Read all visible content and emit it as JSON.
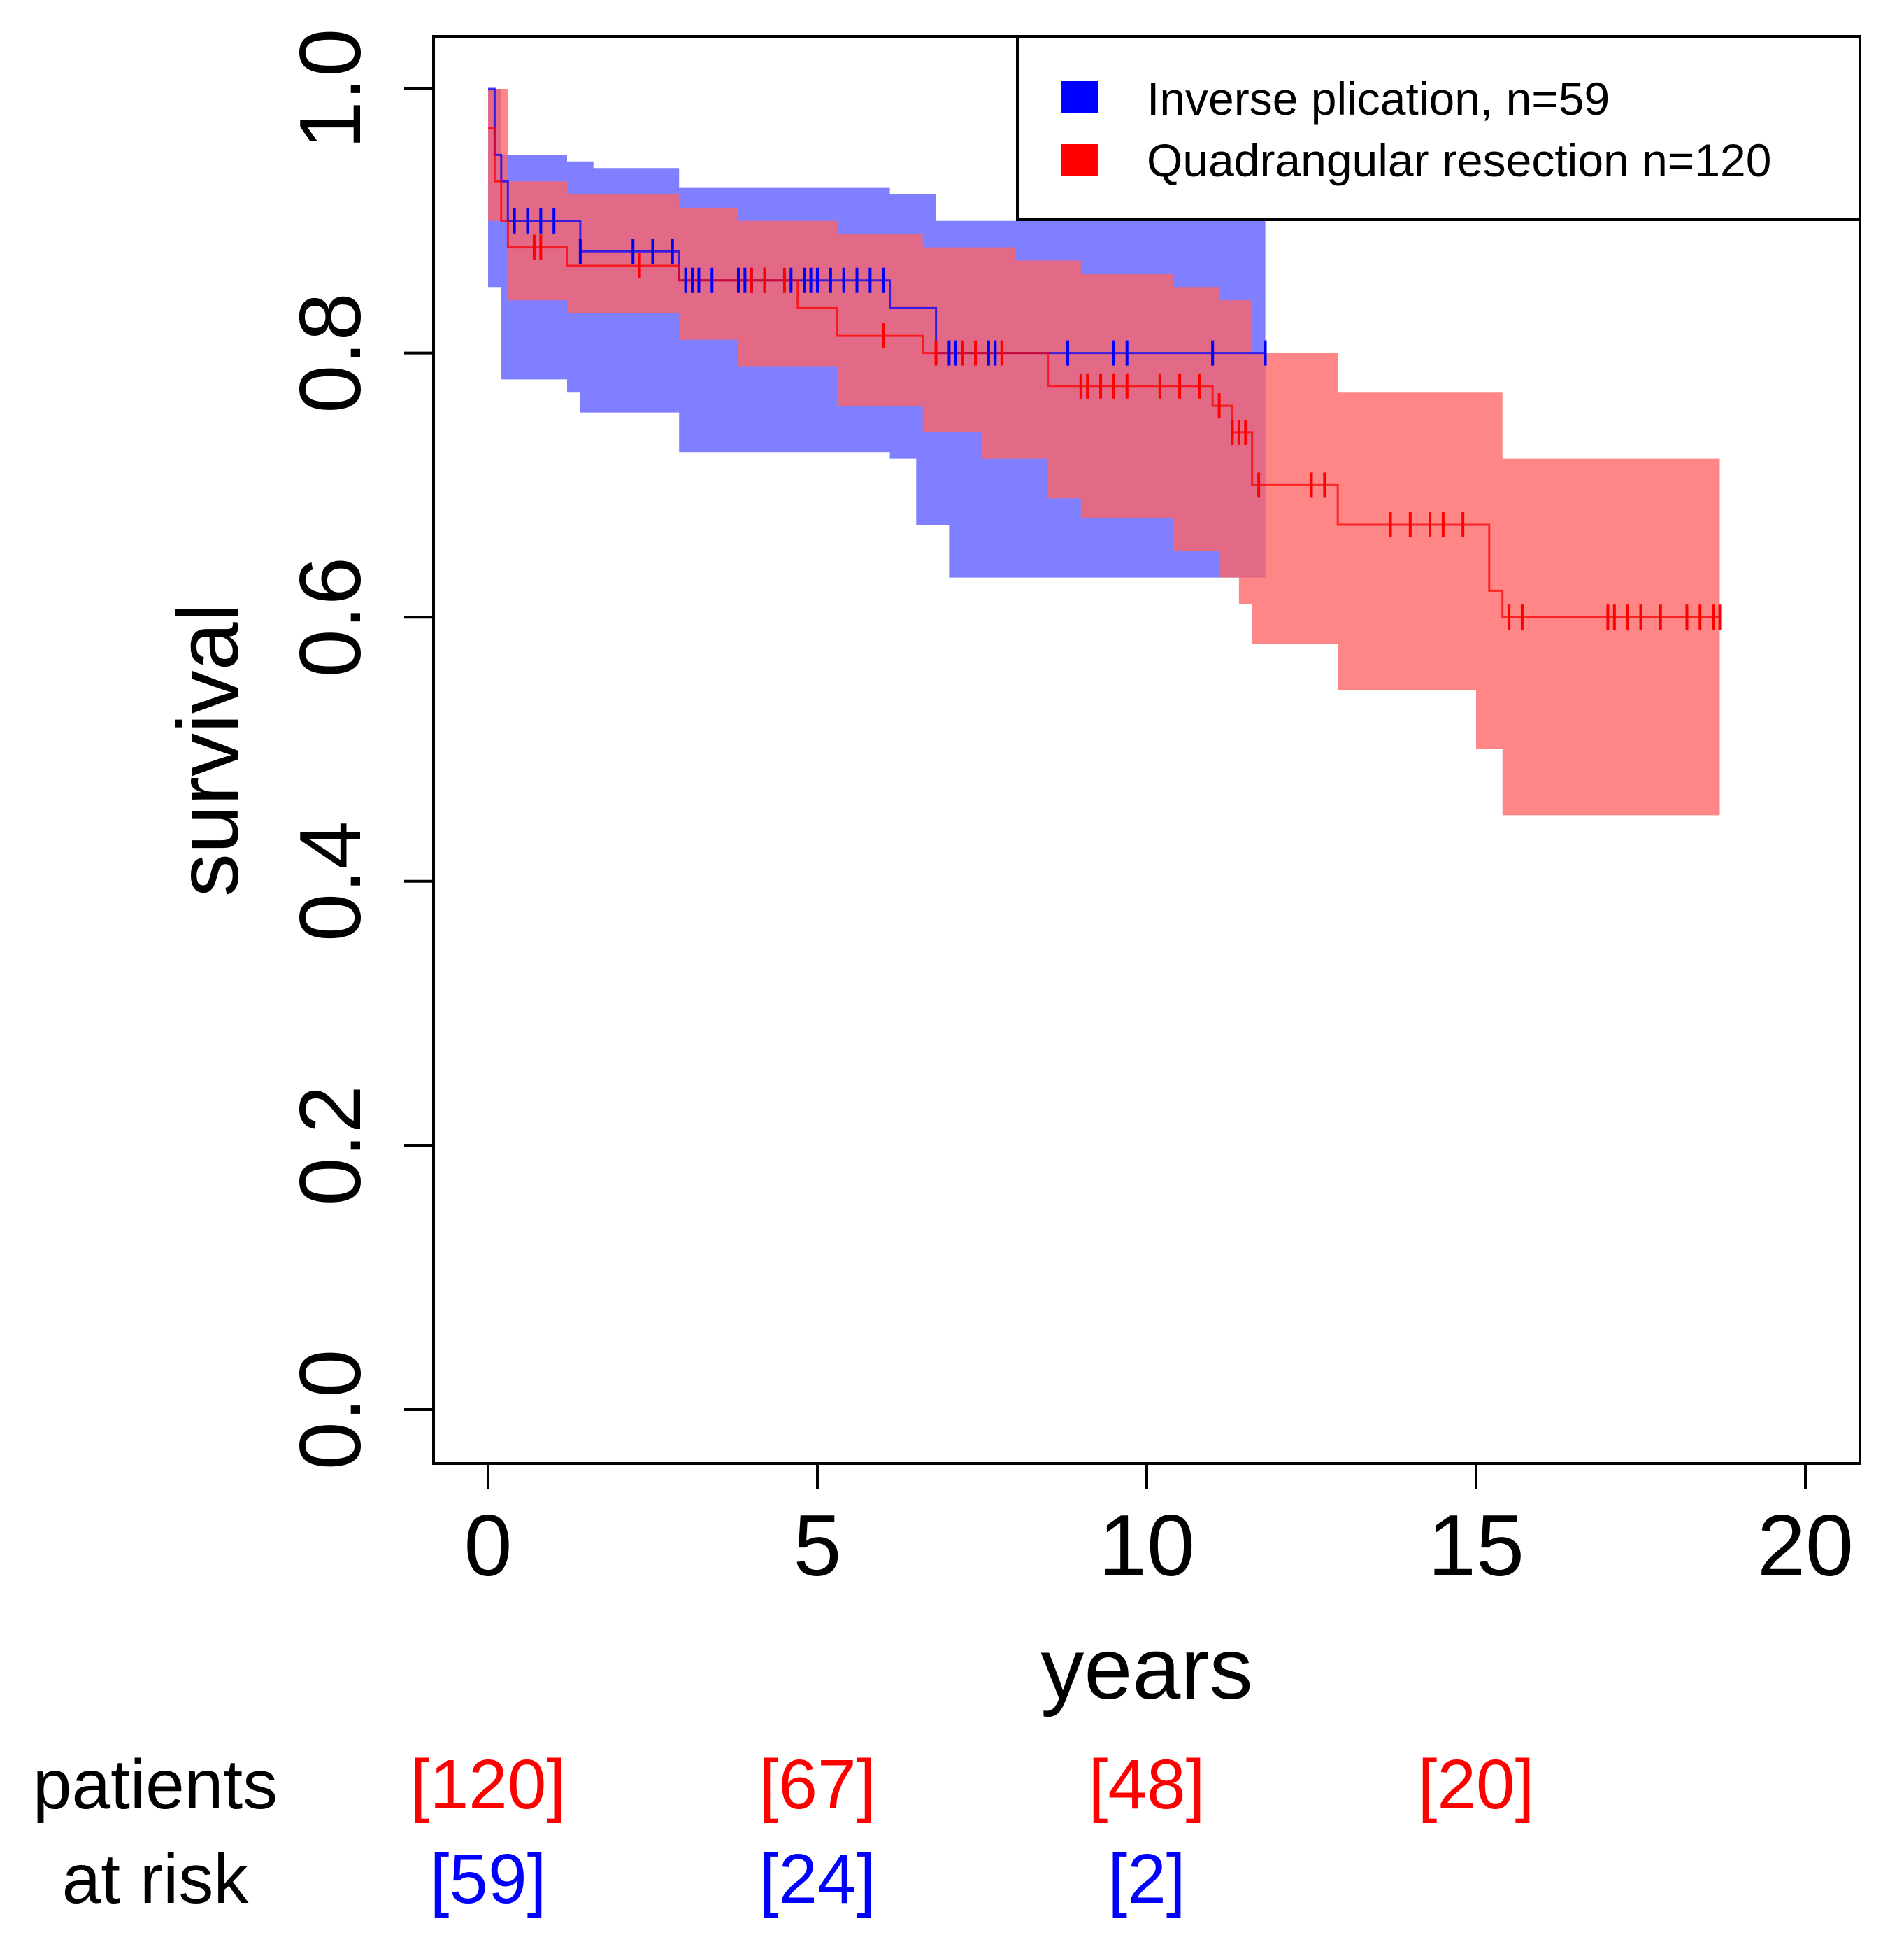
{
  "chart_data": {
    "type": "line",
    "xlabel": "years",
    "ylabel": "survival",
    "xlim": [
      0,
      20
    ],
    "ylim": [
      0,
      1
    ],
    "x_ticks": [
      "0",
      "5",
      "10",
      "15",
      "20"
    ],
    "y_ticks": [
      "0.0",
      "0.2",
      "0.4",
      "0.6",
      "0.8",
      "1.0"
    ],
    "grid": false,
    "legend_position": "top-right",
    "series": [
      {
        "name": "Inverse plication, n=59",
        "color": "#0000ff",
        "band_color": "#5b5bff",
        "steps": [
          [
            0,
            1.0
          ],
          [
            0.1,
            0.95
          ],
          [
            0.2,
            0.93
          ],
          [
            0.3,
            0.9
          ],
          [
            1.4,
            0.877
          ],
          [
            2.9,
            0.855
          ],
          [
            6.1,
            0.834
          ],
          [
            6.8,
            0.8
          ],
          [
            11.8,
            0.8
          ]
        ],
        "ci_lower": [
          [
            0,
            0.85
          ],
          [
            0.2,
            0.78
          ],
          [
            1.2,
            0.77
          ],
          [
            1.4,
            0.755
          ],
          [
            2.9,
            0.725
          ],
          [
            6.1,
            0.72
          ],
          [
            6.5,
            0.67
          ],
          [
            7.0,
            0.63
          ],
          [
            11.8,
            0.63
          ]
        ],
        "ci_upper": [
          [
            0,
            1.0
          ],
          [
            0.2,
            0.95
          ],
          [
            1.2,
            0.945
          ],
          [
            1.6,
            0.94
          ],
          [
            2.9,
            0.925
          ],
          [
            6.1,
            0.92
          ],
          [
            6.8,
            0.9
          ],
          [
            11.8,
            0.9
          ]
        ],
        "censored": [
          0.4,
          0.6,
          0.8,
          1.0,
          1.4,
          2.2,
          2.5,
          2.8,
          3.0,
          3.1,
          3.2,
          3.4,
          3.8,
          3.9,
          4.0,
          4.2,
          4.6,
          4.8,
          4.9,
          5.0,
          5.2,
          5.4,
          5.6,
          5.8,
          6.0,
          7.0,
          7.1,
          7.6,
          7.7,
          8.8,
          9.5,
          9.7,
          11.0,
          11.8
        ]
      },
      {
        "name": "Quadrangular resection n=120",
        "color": "#ff0000",
        "band_color": "#ff6464",
        "steps": [
          [
            0,
            0.97
          ],
          [
            0.1,
            0.93
          ],
          [
            0.2,
            0.9
          ],
          [
            0.3,
            0.88
          ],
          [
            1.2,
            0.866
          ],
          [
            2.9,
            0.855
          ],
          [
            4.7,
            0.834
          ],
          [
            5.3,
            0.813
          ],
          [
            6.6,
            0.8
          ],
          [
            8.5,
            0.775
          ],
          [
            11.0,
            0.76
          ],
          [
            11.3,
            0.74
          ],
          [
            11.6,
            0.7
          ],
          [
            12.9,
            0.67
          ],
          [
            15.2,
            0.62
          ],
          [
            15.4,
            0.6
          ],
          [
            18.7,
            0.6
          ]
        ],
        "ci_lower": [
          [
            0,
            0.9
          ],
          [
            0.3,
            0.84
          ],
          [
            1.2,
            0.83
          ],
          [
            2.9,
            0.81
          ],
          [
            3.8,
            0.79
          ],
          [
            5.3,
            0.76
          ],
          [
            6.6,
            0.74
          ],
          [
            7.5,
            0.72
          ],
          [
            8.5,
            0.69
          ],
          [
            9.0,
            0.675
          ],
          [
            10.4,
            0.65
          ],
          [
            11.1,
            0.63
          ],
          [
            11.4,
            0.61
          ],
          [
            11.6,
            0.58
          ],
          [
            12.9,
            0.545
          ],
          [
            15.0,
            0.5
          ],
          [
            15.4,
            0.45
          ],
          [
            18.7,
            0.45
          ]
        ],
        "ci_upper": [
          [
            0,
            1.0
          ],
          [
            0.3,
            0.93
          ],
          [
            1.2,
            0.92
          ],
          [
            2.9,
            0.91
          ],
          [
            3.8,
            0.9
          ],
          [
            5.3,
            0.89
          ],
          [
            6.6,
            0.88
          ],
          [
            8.0,
            0.87
          ],
          [
            9.0,
            0.86
          ],
          [
            10.4,
            0.85
          ],
          [
            11.1,
            0.84
          ],
          [
            11.6,
            0.8
          ],
          [
            12.9,
            0.77
          ],
          [
            15.4,
            0.72
          ],
          [
            18.7,
            0.72
          ]
        ],
        "censored": [
          0.7,
          0.8,
          2.3,
          4.0,
          4.2,
          4.5,
          6.0,
          6.8,
          7.2,
          7.4,
          7.8,
          9.0,
          9.1,
          9.3,
          9.5,
          9.7,
          10.2,
          10.5,
          10.8,
          11.1,
          11.3,
          11.4,
          11.5,
          11.7,
          12.5,
          12.7,
          13.7,
          14.0,
          14.3,
          14.5,
          14.8,
          15.5,
          15.7,
          17.0,
          17.1,
          17.3,
          17.5,
          17.8,
          18.2,
          18.4,
          18.6,
          18.7
        ]
      }
    ]
  },
  "risk_table": {
    "label_line1": "patients",
    "label_line2": "at risk",
    "rows": [
      {
        "color": "#ff0000",
        "counts": [
          {
            "x": 0,
            "text": "[120]"
          },
          {
            "x": 5,
            "text": "[67]"
          },
          {
            "x": 10,
            "text": "[48]"
          },
          {
            "x": 15,
            "text": "[20]"
          }
        ]
      },
      {
        "color": "#0000ff",
        "counts": [
          {
            "x": 0,
            "text": "[59]"
          },
          {
            "x": 5,
            "text": "[24]"
          },
          {
            "x": 10,
            "text": "[2]"
          }
        ]
      }
    ]
  }
}
